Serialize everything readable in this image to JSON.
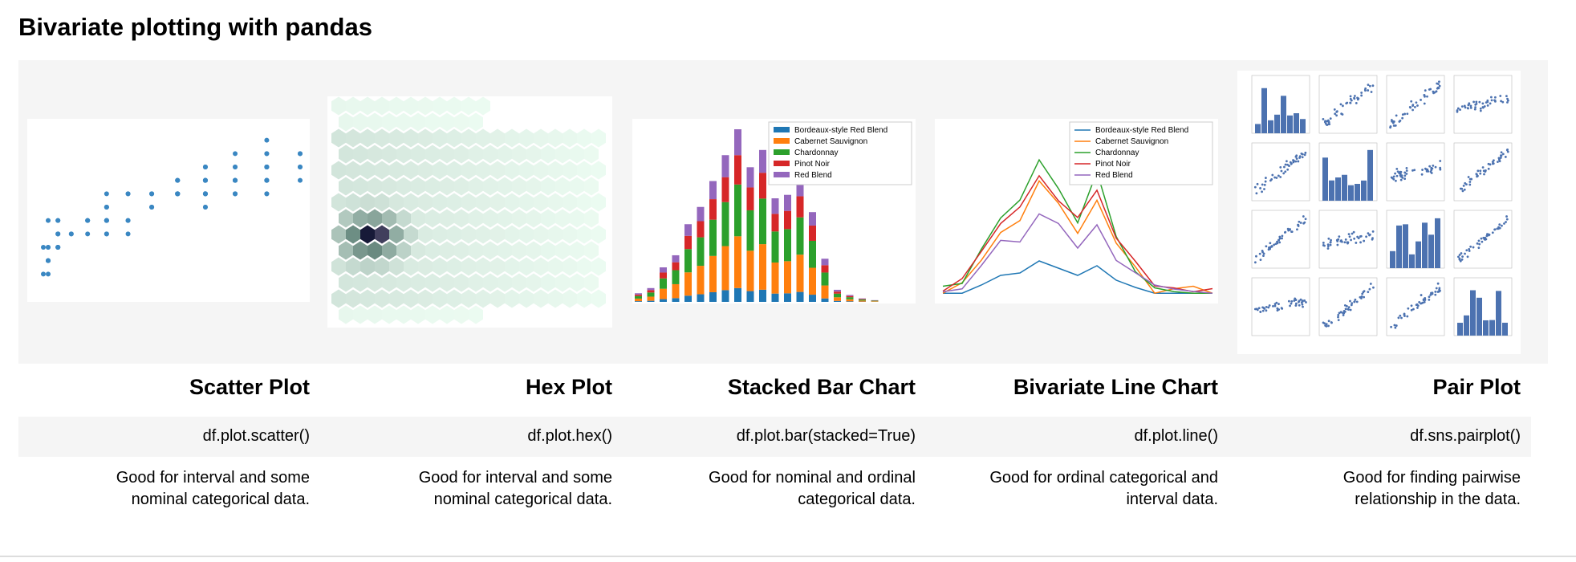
{
  "title": "Bivariate plotting with pandas",
  "table": {
    "columns": [
      {
        "name": "Scatter Plot",
        "code": "df.plot.scatter()",
        "description": [
          "Good for interval and some",
          "nominal categorical data."
        ]
      },
      {
        "name": "Hex Plot",
        "code": "df.plot.hex()",
        "description": [
          "Good for interval and some",
          "nominal categorical data."
        ]
      },
      {
        "name": "Stacked Bar Chart",
        "code": "df.plot.bar(stacked=True)",
        "description": [
          "Good for nominal and ordinal",
          "categorical data."
        ],
        "legend": [
          "Bordeaux-style Red Blend",
          "Cabernet Sauvignon",
          "Chardonnay",
          "Pinot Noir",
          "Red Blend"
        ]
      },
      {
        "name": "Bivariate Line Chart",
        "code": "df.plot.line()",
        "description": [
          "Good for ordinal categorical and",
          "interval data."
        ],
        "legend": [
          "Bordeaux-style Red Blend",
          "Cabernet Sauvignon",
          "Chardonnay",
          "Pinot Noir",
          "Red Blend"
        ]
      },
      {
        "name": "Pair Plot",
        "code": "df.sns.pairplot()",
        "description": [
          "Good for finding pairwise",
          "relationship in the data."
        ]
      }
    ]
  }
}
